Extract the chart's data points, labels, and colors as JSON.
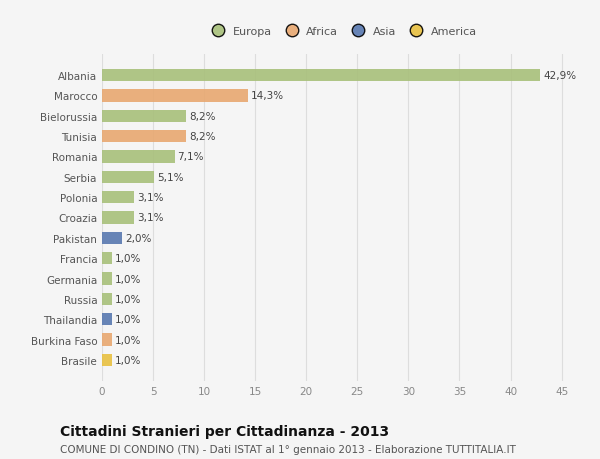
{
  "countries": [
    "Albania",
    "Marocco",
    "Bielorussia",
    "Tunisia",
    "Romania",
    "Serbia",
    "Polonia",
    "Croazia",
    "Pakistan",
    "Francia",
    "Germania",
    "Russia",
    "Thailandia",
    "Burkina Faso",
    "Brasile"
  ],
  "values": [
    42.9,
    14.3,
    8.2,
    8.2,
    7.1,
    5.1,
    3.1,
    3.1,
    2.0,
    1.0,
    1.0,
    1.0,
    1.0,
    1.0,
    1.0
  ],
  "labels": [
    "42,9%",
    "14,3%",
    "8,2%",
    "8,2%",
    "7,1%",
    "5,1%",
    "3,1%",
    "3,1%",
    "2,0%",
    "1,0%",
    "1,0%",
    "1,0%",
    "1,0%",
    "1,0%",
    "1,0%"
  ],
  "colors": [
    "#a8c07a",
    "#e8a870",
    "#a8c07a",
    "#e8a870",
    "#a8c07a",
    "#a8c07a",
    "#a8c07a",
    "#a8c07a",
    "#5878b0",
    "#a8c07a",
    "#a8c07a",
    "#a8c07a",
    "#5878b0",
    "#e8a870",
    "#e8c040"
  ],
  "legend_labels": [
    "Europa",
    "Africa",
    "Asia",
    "America"
  ],
  "legend_colors": [
    "#a8c07a",
    "#e8a870",
    "#5878b0",
    "#e8c040"
  ],
  "xlim": [
    0,
    47
  ],
  "xticks": [
    0,
    5,
    10,
    15,
    20,
    25,
    30,
    35,
    40,
    45
  ],
  "title": "Cittadini Stranieri per Cittadinanza - 2013",
  "subtitle": "COMUNE DI CONDINO (TN) - Dati ISTAT al 1° gennaio 2013 - Elaborazione TUTTITALIA.IT",
  "bg_color": "#f5f5f5",
  "bar_height": 0.6,
  "label_fontsize": 7.5,
  "tick_fontsize": 7.5,
  "title_fontsize": 10,
  "subtitle_fontsize": 7.5
}
